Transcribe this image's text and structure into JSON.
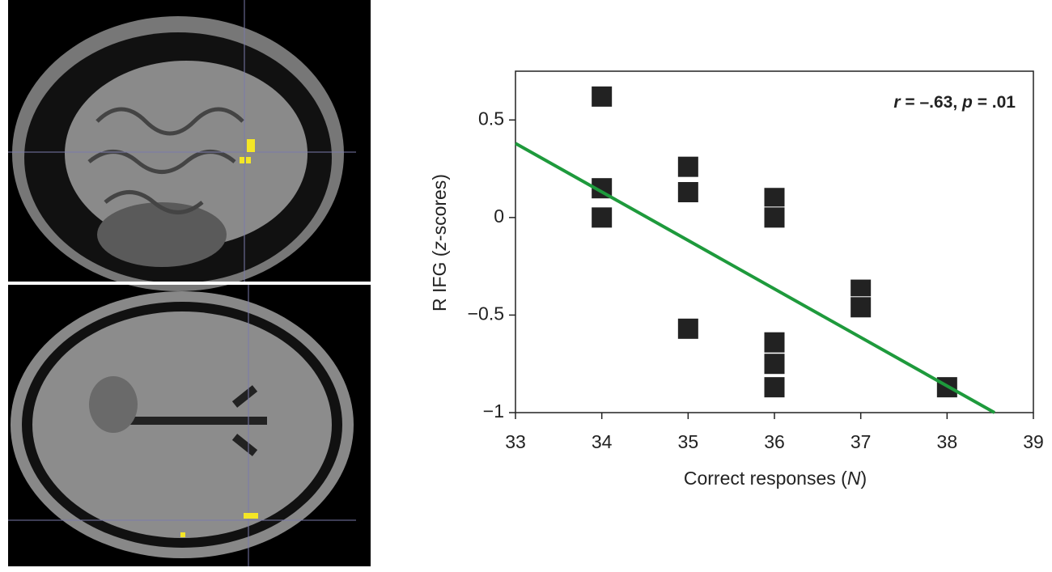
{
  "chart_data": {
    "type": "scatter",
    "x_label": [
      "Correct responses (",
      "N",
      ")"
    ],
    "y_label": [
      "R IFG (",
      "z",
      "-scores)"
    ],
    "annotation": [
      "r",
      " = –.63, ",
      "p",
      " = .01"
    ],
    "xlim": [
      33,
      39
    ],
    "xticks": [
      33,
      34,
      35,
      36,
      37,
      38,
      39
    ],
    "ylim": [
      -1,
      0.75
    ],
    "yticks": [
      0.5,
      0,
      {
        "value": -0.5,
        "label": "−0.5"
      },
      {
        "value": -1,
        "label": "−1"
      }
    ],
    "series": [
      {
        "color": "#222222",
        "x": [
          34,
          34,
          34,
          35,
          35,
          35,
          36,
          36,
          36,
          36,
          36,
          37,
          37,
          38
        ],
        "values": [
          0.62,
          0.15,
          0.0,
          0.26,
          0.13,
          -0.57,
          0.1,
          0.0,
          -0.64,
          -0.75,
          -0.87,
          -0.37,
          -0.46,
          -0.87
        ]
      }
    ],
    "trend_line": {
      "color": "#1e9a3c",
      "x": [
        33,
        38.55
      ],
      "values": [
        0.38,
        -1
      ]
    }
  }
}
